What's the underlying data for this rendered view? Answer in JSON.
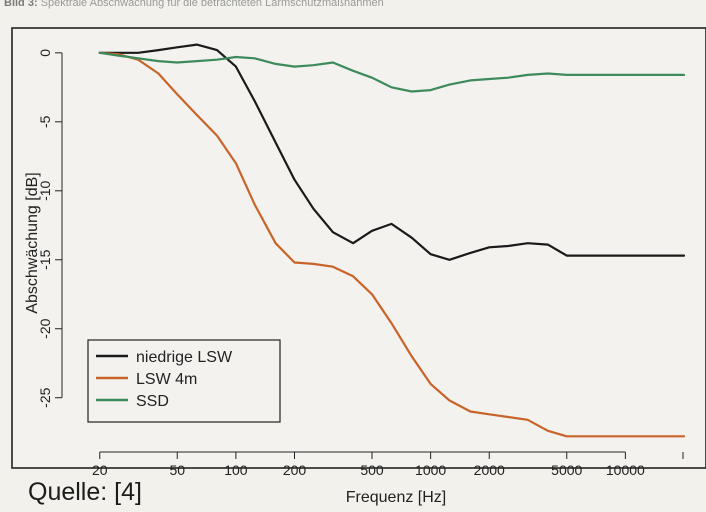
{
  "caption": {
    "label": "Bild 3:",
    "text": "Spektrale Abschwächung für die betrachteten Lärmschutzmaßnahmen"
  },
  "source_note": "Quelle: [4]",
  "colors": {
    "niedrige_lsw": "#1a1a1a",
    "lsw_4m": "#c8642a",
    "ssd": "#3d8a5a",
    "plot_bg": "#f3f2ee",
    "frame": "#222222"
  },
  "chart_data": {
    "type": "line",
    "xlabel": "Frequenz [Hz]",
    "ylabel": "Abschwächung [dB]",
    "x_scale": "log",
    "xlim": [
      17,
      20000
    ],
    "ylim": [
      -28.5,
      1.8
    ],
    "xticks": [
      20,
      50,
      100,
      200,
      500,
      1000,
      2000,
      5000,
      10000
    ],
    "xtick_labels": [
      "20",
      "50",
      "100",
      "200",
      "500",
      "1000",
      "2000",
      "5000",
      "10000"
    ],
    "yticks": [
      0,
      -5,
      -10,
      -15,
      -20,
      -25
    ],
    "ytick_labels": [
      "0",
      "-5",
      "-10",
      "-15",
      "-20",
      "-25"
    ],
    "grid": false,
    "legend_position": "bottom-left",
    "series": [
      {
        "name": "niedrige LSW",
        "x": [
          20,
          25,
          31.5,
          40,
          50,
          63,
          80,
          100,
          125,
          160,
          200,
          250,
          315,
          400,
          500,
          630,
          800,
          1000,
          1250,
          1600,
          2000,
          2500,
          3150,
          4000,
          5000,
          6300,
          8000,
          10000,
          12500,
          16000,
          20000
        ],
        "y": [
          0,
          0,
          0,
          0.2,
          0.4,
          0.6,
          0.2,
          -1,
          -3.5,
          -6.5,
          -9.2,
          -11.3,
          -13,
          -13.8,
          -12.9,
          -12.4,
          -13.4,
          -14.6,
          -15,
          -14.5,
          -14.1,
          -14,
          -13.8,
          -13.9,
          -14.7,
          -14.7,
          -14.7,
          -14.7,
          -14.7,
          -14.7,
          -14.7
        ]
      },
      {
        "name": "LSW 4m",
        "x": [
          20,
          25,
          31.5,
          40,
          50,
          63,
          80,
          100,
          125,
          160,
          200,
          250,
          315,
          400,
          500,
          630,
          800,
          1000,
          1250,
          1600,
          2000,
          2500,
          3150,
          4000,
          5000,
          6300,
          8000,
          10000,
          12500,
          16000,
          20000
        ],
        "y": [
          0,
          -0.1,
          -0.5,
          -1.5,
          -3,
          -4.5,
          -6,
          -8,
          -11,
          -13.8,
          -15.2,
          -15.3,
          -15.5,
          -16.2,
          -17.5,
          -19.6,
          -22,
          -24,
          -25.2,
          -26,
          -26.2,
          -26.4,
          -26.6,
          -27.4,
          -27.8,
          -27.8,
          -27.8,
          -27.8,
          -27.8,
          -27.8,
          -27.8
        ]
      },
      {
        "name": "SSD",
        "x": [
          20,
          25,
          31.5,
          40,
          50,
          63,
          80,
          100,
          125,
          160,
          200,
          250,
          315,
          400,
          500,
          630,
          800,
          1000,
          1250,
          1600,
          2000,
          2500,
          3150,
          4000,
          5000,
          6300,
          8000,
          10000,
          12500,
          16000,
          20000
        ],
        "y": [
          0,
          -0.2,
          -0.4,
          -0.6,
          -0.7,
          -0.6,
          -0.5,
          -0.3,
          -0.4,
          -0.8,
          -1,
          -0.9,
          -0.7,
          -1.3,
          -1.8,
          -2.5,
          -2.8,
          -2.7,
          -2.3,
          -2,
          -1.9,
          -1.8,
          -1.6,
          -1.5,
          -1.6,
          -1.6,
          -1.6,
          -1.6,
          -1.6,
          -1.6,
          -1.6
        ]
      }
    ]
  }
}
